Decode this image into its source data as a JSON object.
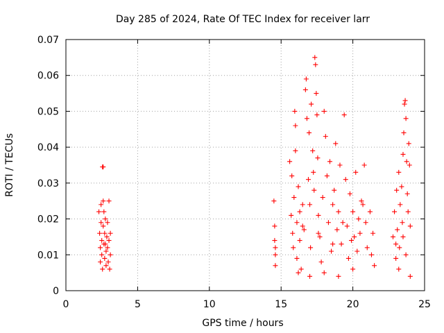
{
  "chart_data": {
    "type": "scatter",
    "title": "Day 285 of 2024, Rate Of TEC Index for receiver larr",
    "xlabel": "GPS time / hours",
    "ylabel": "ROTI / TECUs",
    "xlim": [
      0,
      25
    ],
    "ylim": [
      0,
      0.07
    ],
    "xticks": [
      0,
      5,
      10,
      15,
      20,
      25
    ],
    "xtick_labels": [
      "0",
      "5",
      "10",
      "15",
      "20",
      "25"
    ],
    "yticks": [
      0,
      0.01,
      0.02,
      0.03,
      0.04,
      0.05,
      0.06,
      0.07
    ],
    "ytick_labels": [
      "0",
      "0.01",
      "0.02",
      "0.03",
      "0.04",
      "0.05",
      "0.06",
      "0.07"
    ],
    "grid": true,
    "marker": "plus",
    "color": "#ff0000",
    "series": [
      {
        "points": [
          [
            2.3,
            0.022
          ],
          [
            2.35,
            0.016
          ],
          [
            2.4,
            0.012
          ],
          [
            2.4,
            0.008
          ],
          [
            2.45,
            0.019
          ],
          [
            2.5,
            0.014
          ],
          [
            2.5,
            0.01
          ],
          [
            2.55,
            0.0345
          ],
          [
            2.6,
            0.0345
          ],
          [
            2.6,
            0.025
          ],
          [
            2.6,
            0.018
          ],
          [
            2.65,
            0.022
          ],
          [
            2.65,
            0.013
          ],
          [
            2.7,
            0.009
          ],
          [
            2.7,
            0.016
          ],
          [
            2.75,
            0.02
          ],
          [
            2.8,
            0.011
          ],
          [
            2.8,
            0.007
          ],
          [
            2.85,
            0.015
          ],
          [
            2.9,
            0.019
          ],
          [
            2.9,
            0.012
          ],
          [
            2.95,
            0.008
          ],
          [
            3.0,
            0.014
          ],
          [
            3.0,
            0.025
          ],
          [
            3.05,
            0.006
          ],
          [
            3.1,
            0.01
          ],
          [
            3.1,
            0.016
          ],
          [
            2.45,
            0.024
          ],
          [
            2.55,
            0.006
          ],
          [
            2.75,
            0.013
          ],
          [
            14.5,
            0.025
          ],
          [
            14.55,
            0.018
          ],
          [
            14.55,
            0.014
          ],
          [
            14.6,
            0.01
          ],
          [
            14.6,
            0.007
          ],
          [
            14.6,
            0.012
          ],
          [
            15.6,
            0.036
          ],
          [
            15.7,
            0.021
          ],
          [
            15.75,
            0.032
          ],
          [
            15.8,
            0.016
          ],
          [
            15.85,
            0.012
          ],
          [
            15.9,
            0.026
          ],
          [
            15.95,
            0.05
          ],
          [
            16.0,
            0.046
          ],
          [
            16.0,
            0.039
          ],
          [
            16.1,
            0.019
          ],
          [
            16.1,
            0.009
          ],
          [
            16.2,
            0.029
          ],
          [
            16.3,
            0.014
          ],
          [
            16.3,
            0.022
          ],
          [
            16.4,
            0.006
          ],
          [
            16.5,
            0.024
          ],
          [
            16.6,
            0.017
          ],
          [
            16.7,
            0.056
          ],
          [
            16.75,
            0.059
          ],
          [
            16.8,
            0.048
          ],
          [
            16.9,
            0.031
          ],
          [
            16.95,
            0.044
          ],
          [
            17.0,
            0.024
          ],
          [
            17.05,
            0.012
          ],
          [
            17.1,
            0.052
          ],
          [
            17.2,
            0.039
          ],
          [
            17.25,
            0.033
          ],
          [
            17.3,
            0.028
          ],
          [
            17.35,
            0.065
          ],
          [
            17.4,
            0.063
          ],
          [
            17.45,
            0.055
          ],
          [
            17.5,
            0.049
          ],
          [
            17.55,
            0.037
          ],
          [
            17.6,
            0.021
          ],
          [
            17.7,
            0.015
          ],
          [
            17.8,
            0.008
          ],
          [
            17.9,
            0.026
          ],
          [
            18.0,
            0.05
          ],
          [
            18.1,
            0.043
          ],
          [
            18.2,
            0.032
          ],
          [
            18.3,
            0.019
          ],
          [
            18.4,
            0.036
          ],
          [
            18.5,
            0.011
          ],
          [
            18.6,
            0.024
          ],
          [
            18.7,
            0.028
          ],
          [
            18.8,
            0.041
          ],
          [
            18.9,
            0.017
          ],
          [
            19.0,
            0.022
          ],
          [
            19.1,
            0.035
          ],
          [
            19.2,
            0.013
          ],
          [
            19.3,
            0.019
          ],
          [
            19.4,
            0.049
          ],
          [
            19.5,
            0.031
          ],
          [
            19.6,
            0.018
          ],
          [
            19.7,
            0.009
          ],
          [
            19.8,
            0.027
          ],
          [
            19.9,
            0.014
          ],
          [
            20.0,
            0.022
          ],
          [
            20.1,
            0.015
          ],
          [
            20.2,
            0.033
          ],
          [
            20.3,
            0.011
          ],
          [
            20.4,
            0.02
          ],
          [
            20.5,
            0.016
          ],
          [
            20.6,
            0.025
          ],
          [
            20.7,
            0.024
          ],
          [
            20.8,
            0.035
          ],
          [
            20.9,
            0.019
          ],
          [
            21.0,
            0.012
          ],
          [
            21.2,
            0.022
          ],
          [
            21.3,
            0.01
          ],
          [
            21.4,
            0.016
          ],
          [
            21.5,
            0.007
          ],
          [
            16.2,
            0.005
          ],
          [
            17.0,
            0.004
          ],
          [
            18.0,
            0.005
          ],
          [
            19.0,
            0.004
          ],
          [
            20.0,
            0.006
          ],
          [
            16.5,
            0.018
          ],
          [
            17.6,
            0.016
          ],
          [
            18.6,
            0.013
          ],
          [
            22.8,
            0.015
          ],
          [
            22.9,
            0.022
          ],
          [
            23.0,
            0.009
          ],
          [
            23.05,
            0.028
          ],
          [
            23.1,
            0.017
          ],
          [
            23.2,
            0.033
          ],
          [
            23.25,
            0.012
          ],
          [
            23.3,
            0.024
          ],
          [
            23.4,
            0.029
          ],
          [
            23.45,
            0.019
          ],
          [
            23.5,
            0.038
          ],
          [
            23.55,
            0.044
          ],
          [
            23.6,
            0.052
          ],
          [
            23.65,
            0.053
          ],
          [
            23.7,
            0.048
          ],
          [
            23.75,
            0.036
          ],
          [
            23.8,
            0.027
          ],
          [
            23.85,
            0.022
          ],
          [
            23.9,
            0.041
          ],
          [
            23.95,
            0.035
          ],
          [
            24.0,
            0.018
          ],
          [
            24.0,
            0.004
          ],
          [
            23.7,
            0.01
          ],
          [
            23.2,
            0.006
          ],
          [
            23.5,
            0.015
          ],
          [
            23.0,
            0.013
          ]
        ]
      }
    ]
  }
}
